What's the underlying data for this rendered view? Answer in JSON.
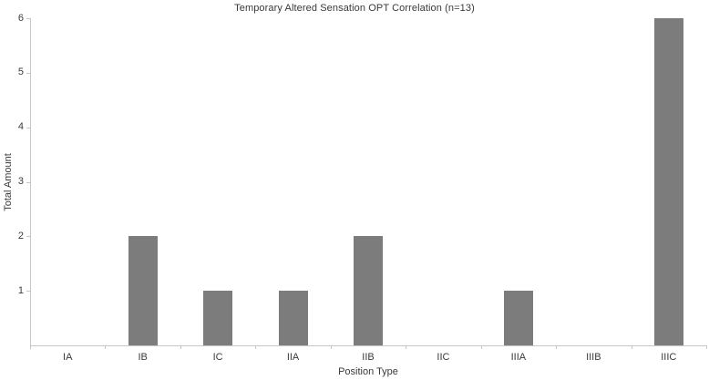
{
  "chart_data": {
    "type": "bar",
    "title": "Temporary Altered Sensation OPT Correlation (n=13)",
    "categories": [
      "IA",
      "IB",
      "IC",
      "IIA",
      "IIB",
      "IIC",
      "IIIA",
      "IIIB",
      "IIIC"
    ],
    "values": [
      0,
      2,
      1,
      1,
      2,
      0,
      1,
      0,
      6
    ],
    "xlabel": "Position Type",
    "ylabel": "Total Amount",
    "ylim": [
      0,
      6
    ],
    "yticks": [
      1,
      2,
      3,
      4,
      5,
      6
    ],
    "grid": false,
    "legend": "none",
    "colors": {
      "bar": "#7c7c7c",
      "axis": "#c6c6c6",
      "text": "#3a3a3a",
      "background": "#ffffff"
    }
  }
}
